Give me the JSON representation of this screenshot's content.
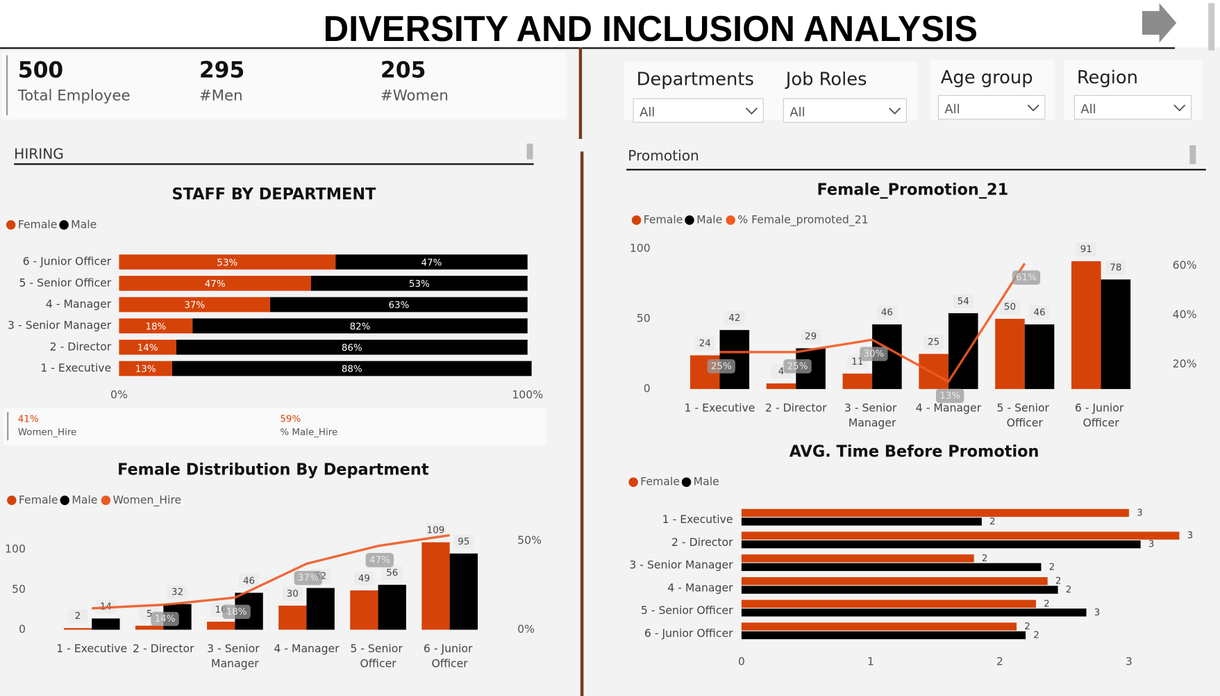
{
  "header": {
    "title": "DIVERSITY AND INCLUSION ANALYSIS"
  },
  "kpis": [
    {
      "value": "500",
      "label": "Total Employee"
    },
    {
      "value": "295",
      "label": "#Men"
    },
    {
      "value": "205",
      "label": "#Women"
    }
  ],
  "filters": [
    {
      "label": "Departments",
      "value": "All"
    },
    {
      "label": "Job Roles",
      "value": "All"
    },
    {
      "label": "Age group",
      "value": "All"
    },
    {
      "label": "Region",
      "value": "All"
    }
  ],
  "sections": {
    "hiring": "HIRING",
    "promotion": "Promotion"
  },
  "hire_card": [
    {
      "value": "41%",
      "label": "Women_Hire"
    },
    {
      "value": "59%",
      "label": "% Male_Hire"
    }
  ],
  "chart_data": [
    {
      "type": "hbar_stacked",
      "title": "STAFF BY DEPARTMENT",
      "categories": [
        "6 - Junior Officer",
        "5 - Senior Officer",
        "4 - Manager",
        "3 - Senior Manager",
        "2 - Director",
        "1 - Executive"
      ],
      "series": [
        {
          "name": "Female",
          "color": "#d64309",
          "values": [
            53,
            47,
            37,
            18,
            14,
            13
          ],
          "value_labels": [
            "53%",
            "47%",
            "37%",
            "18%",
            "14%",
            "13%"
          ]
        },
        {
          "name": "Male",
          "color": "#000000",
          "values": [
            47,
            53,
            63,
            82,
            86,
            88
          ],
          "value_labels": [
            "47%",
            "53%",
            "63%",
            "82%",
            "86%",
            "88%"
          ]
        }
      ],
      "xlim": [
        0,
        100
      ],
      "xticks": [
        {
          "value": 0,
          "label": "0%"
        },
        {
          "value": 100,
          "label": "100%"
        }
      ],
      "legend": "top-left"
    },
    {
      "type": "combo",
      "title": "Female Distribution By Department",
      "categories": [
        "1 - Executive",
        "2 - Director",
        "3 - Senior Manager",
        "4 - Manager",
        "5 - Senior Officer",
        "6 - Junior Officer"
      ],
      "series": [
        {
          "name": "Female",
          "color": "#d64309",
          "values": [
            2,
            5,
            10,
            30,
            49,
            109
          ]
        },
        {
          "name": "Male",
          "color": "#000000",
          "values": [
            14,
            32,
            46,
            52,
            56,
            95
          ]
        },
        {
          "name": "Women_Hire",
          "color": "#ec5a24",
          "axis": "y2",
          "values": [
            12,
            14,
            18,
            37,
            47,
            53
          ],
          "value_labels": [
            null,
            "14%",
            "18%",
            "37%",
            "47%",
            null
          ]
        }
      ],
      "ylim": [
        0,
        120
      ],
      "yticks": [
        0,
        50,
        100
      ],
      "y2lim": [
        0,
        54
      ],
      "y2ticks": [
        {
          "value": 0,
          "label": "0%"
        },
        {
          "value": 50,
          "label": "50%"
        }
      ],
      "legend": "top-left"
    },
    {
      "type": "combo",
      "title": "Female_Promotion_21",
      "categories": [
        "1 - Executive",
        "2 - Director",
        "3 - Senior Manager",
        "4 - Manager",
        "5 - Senior Officer",
        "6 - Junior Officer"
      ],
      "series": [
        {
          "name": "Female",
          "color": "#d64309",
          "values": [
            24,
            4,
            11,
            25,
            50,
            91
          ]
        },
        {
          "name": "Male",
          "color": "#000000",
          "values": [
            42,
            29,
            46,
            54,
            46,
            78
          ]
        },
        {
          "name": "% Female_promoted_21",
          "color": "#f15a22",
          "axis": "y2",
          "values": [
            25,
            25,
            30,
            13,
            61,
            null
          ],
          "value_labels": [
            "25%",
            "25%",
            "30%",
            "13%",
            "61%",
            null
          ]
        }
      ],
      "ylim": [
        0,
        100
      ],
      "yticks": [
        0,
        50,
        100
      ],
      "y2lim": [
        10,
        67
      ],
      "y2ticks": [
        {
          "value": 20,
          "label": "20%"
        },
        {
          "value": 40,
          "label": "40%"
        },
        {
          "value": 60,
          "label": "60%"
        }
      ],
      "legend": "top-left"
    },
    {
      "type": "hbar_grouped",
      "title": "AVG. Time Before Promotion",
      "categories": [
        "1 - Executive",
        "2 - Director",
        "3 - Senior Manager",
        "4 - Manager",
        "5 - Senior Officer",
        "6 - Junior Officer"
      ],
      "series": [
        {
          "name": "Female",
          "color": "#d64309",
          "values": [
            3.0,
            3.39,
            1.8,
            2.37,
            2.28,
            2.13
          ],
          "value_labels": [
            "3",
            "3",
            "2",
            "2",
            "2",
            "2"
          ]
        },
        {
          "name": "Male",
          "color": "#000000",
          "values": [
            1.86,
            3.09,
            2.32,
            2.45,
            2.67,
            2.2
          ],
          "value_labels": [
            "2",
            "3",
            "2",
            "2",
            "3",
            "2"
          ]
        }
      ],
      "xlim": [
        0,
        3.5
      ],
      "xticks": [
        0,
        1,
        2,
        3
      ],
      "legend": "top-left"
    }
  ]
}
